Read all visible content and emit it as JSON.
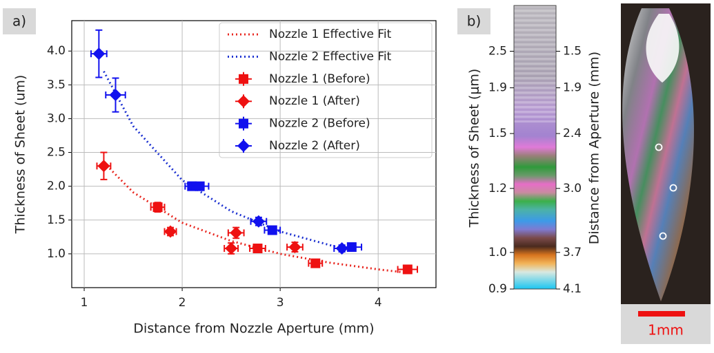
{
  "chart_data": [
    {
      "type": "scatter",
      "panel_label": "a)",
      "xlabel": "Distance from Nozzle Aperture (mm)",
      "ylabel": "Thickness of Sheet (um)",
      "xlim": [
        0.873,
        4.59
      ],
      "ylim": [
        0.5,
        4.45
      ],
      "xticks": [
        1,
        2,
        3,
        4
      ],
      "yticks": [
        {
          "value": 1,
          "label": "1.0"
        },
        {
          "value": 1.5,
          "label": "1.5"
        },
        {
          "value": 2,
          "label": "2.0"
        },
        {
          "value": 2.5,
          "label": "2.5"
        },
        {
          "value": 3,
          "label": "3.0"
        },
        {
          "value": 3.5,
          "label": "3.5"
        },
        {
          "value": 4,
          "label": "4.0"
        }
      ],
      "grid": true,
      "legend": "upper right",
      "series": [
        {
          "name": "Nozzle 1 Effective Fit",
          "color": "#e8261f",
          "linestyle": "dotted",
          "x": [
            1.2,
            1.5,
            2,
            2.5,
            3,
            3.5,
            4,
            4.3
          ],
          "values": [
            2.35,
            1.91,
            1.46,
            1.19,
            1.0,
            0.87,
            0.77,
            0.72
          ]
        },
        {
          "name": "Nozzle 2 Effective Fit",
          "color": "#1a2fd0",
          "linestyle": "dotted",
          "x": [
            1.2,
            1.5,
            2,
            2.5,
            3,
            3.63
          ],
          "values": [
            3.7,
            2.89,
            2.09,
            1.63,
            1.33,
            1.08
          ]
        },
        {
          "name": "Nozzle 1 (Before)",
          "color": "#ee1111",
          "marker": "square",
          "x": [
            1.75,
            2.77,
            3.36,
            4.3
          ],
          "values": [
            1.69,
            1.08,
            0.86,
            0.77
          ],
          "xerr": [
            0.07,
            0.08,
            0.07,
            0.1
          ],
          "yerr": [
            0.07,
            0.05,
            0.05,
            0.05
          ]
        },
        {
          "name": "Nozzle 1 (After)",
          "color": "#ee1111",
          "marker": "diamond",
          "x": [
            1.2,
            1.88,
            2.5,
            2.55,
            3.15
          ],
          "values": [
            2.3,
            1.33,
            1.08,
            1.31,
            1.1
          ],
          "xerr": [
            0.07,
            0.06,
            0.07,
            0.08,
            0.08
          ],
          "yerr": [
            0.2,
            0.06,
            0.08,
            0.08,
            0.07
          ]
        },
        {
          "name": "Nozzle 2 (Before)",
          "color": "#1111ee",
          "marker": "square",
          "x": [
            2.1,
            2.18,
            2.92,
            3.73
          ],
          "values": [
            2.0,
            2.0,
            1.35,
            1.1
          ],
          "xerr": [
            0.07,
            0.09,
            0.08,
            0.1
          ],
          "yerr": [
            0.06,
            0.05,
            0.06,
            0.05
          ]
        },
        {
          "name": "Nozzle 2 (After)",
          "color": "#1111ee",
          "marker": "diamond",
          "x": [
            1.15,
            1.32,
            2.78,
            3.63
          ],
          "values": [
            3.96,
            3.35,
            1.48,
            1.08
          ],
          "xerr": [
            0.08,
            0.1,
            0.08,
            0.08
          ],
          "yerr": [
            0.35,
            0.25,
            0.06,
            0.05
          ]
        }
      ]
    },
    {
      "type": "colorbar",
      "panel_label": "b)",
      "ylabel": "Thickness of Sheet (μm)",
      "y2label": "Distance from Aperture (mm)",
      "yticks": [
        2.5,
        1.9,
        1.5,
        1.2,
        {
          "value": 1,
          "label": "1.0"
        },
        0.9
      ],
      "y2lim": [
        4.1,
        1.0
      ],
      "y2ticks": [
        1.5,
        1.9,
        2.4,
        {
          "value": 3,
          "label": "3.0"
        },
        3.7,
        4.1
      ]
    }
  ],
  "image": {
    "scale_label": "1mm"
  }
}
